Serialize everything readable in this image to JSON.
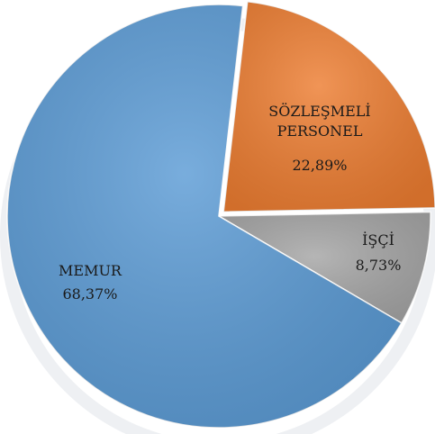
{
  "chart_data": {
    "type": "pie",
    "categories": [
      "SÖZLEŞMELİ PERSONEL",
      "İŞÇİ",
      "MEMUR"
    ],
    "values": [
      22.89,
      8.73,
      68.37
    ],
    "value_labels": [
      "22,89%",
      "8,73%",
      "68,37%"
    ],
    "colors": [
      "#ed7d31",
      "#a5a5a5",
      "#5b9bd5"
    ]
  }
}
